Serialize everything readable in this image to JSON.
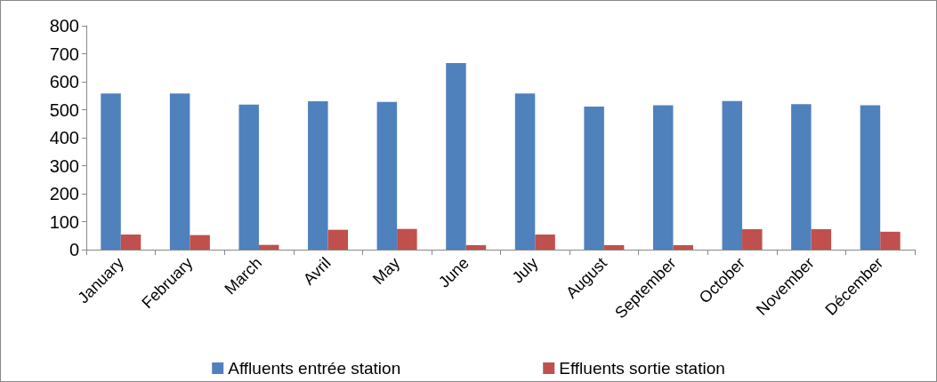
{
  "chart_data": {
    "type": "bar",
    "categories": [
      "January",
      "February",
      "March",
      "Avril",
      "May",
      "June",
      "July",
      "August",
      "September",
      "October",
      "November",
      "Décember"
    ],
    "series": [
      {
        "name": "Affluents entrée station",
        "color": "#4f81bd",
        "values": [
          558,
          558,
          518,
          530,
          528,
          667,
          558,
          511,
          516,
          531,
          520,
          516
        ]
      },
      {
        "name": "Effluents sortie station",
        "color": "#c0504d",
        "values": [
          54,
          52,
          17,
          71,
          74,
          16,
          54,
          16,
          16,
          73,
          73,
          64
        ]
      }
    ],
    "ylim": [
      0,
      800
    ],
    "yticks": [
      0,
      100,
      200,
      300,
      400,
      500,
      600,
      700,
      800
    ],
    "grid": false,
    "legend": "bottom"
  }
}
